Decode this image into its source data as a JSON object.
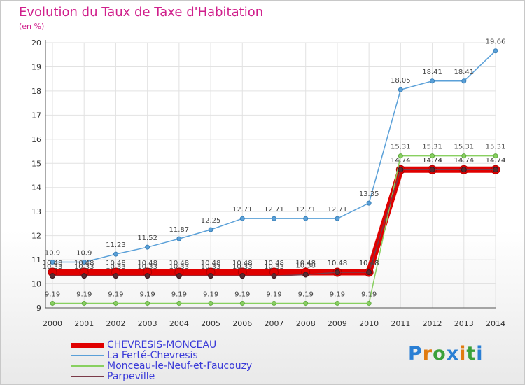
{
  "title": "Evolution du Taux de Taxe d'Habitation",
  "subtitle": "(en %)",
  "logo_text": "Proxiti",
  "logo_colors": [
    "#2a7fd4",
    "#e07b10",
    "#3aa03a",
    "#2a7fd4",
    "#e07b10",
    "#3aa03a",
    "#2a7fd4"
  ],
  "chart_data": {
    "type": "line",
    "x": [
      "2000",
      "2001",
      "2002",
      "2003",
      "2004",
      "2005",
      "2006",
      "2007",
      "2008",
      "2009",
      "2010",
      "2011",
      "2012",
      "2013",
      "2014"
    ],
    "ylim": [
      9,
      20
    ],
    "yticks": [
      "9",
      "10",
      "11",
      "12",
      "13",
      "14",
      "15",
      "16",
      "17",
      "18",
      "19",
      "20"
    ],
    "grid": true,
    "legend_position": "bottom-left",
    "series": [
      {
        "name": "CHEVRESIS-MONCEAU",
        "color": "#e00000",
        "values": [
          10.48,
          10.48,
          10.48,
          10.48,
          10.48,
          10.48,
          10.48,
          10.48,
          10.48,
          10.48,
          10.48,
          14.74,
          14.74,
          14.74,
          14.74
        ],
        "labels": [
          "10.48",
          "10.48",
          "10.48",
          "10.48",
          "10.48",
          "10.48",
          "10.48",
          "10.48",
          "10.48",
          "10.48",
          "10.48",
          "14.74",
          "14.74",
          "14.74",
          "14.74"
        ]
      },
      {
        "name": "La Ferté-Chevresis",
        "color": "#5aa0d8",
        "values": [
          10.9,
          10.9,
          11.23,
          11.52,
          11.87,
          12.25,
          12.71,
          12.71,
          12.71,
          12.71,
          13.35,
          18.05,
          18.41,
          18.41,
          19.66
        ],
        "labels": [
          "10.9",
          "10.9",
          "11.23",
          "11.52",
          "11.87",
          "12.25",
          "12.71",
          "12.71",
          "12.71",
          "12.71",
          "13.35",
          "18.05",
          "18.41",
          "18.41",
          "19.66"
        ]
      },
      {
        "name": "Monceau-le-Neuf-et-Faucouzy",
        "color": "#88d060",
        "values": [
          9.19,
          9.19,
          9.19,
          9.19,
          9.19,
          9.19,
          9.19,
          9.19,
          9.19,
          9.19,
          9.19,
          15.31,
          15.31,
          15.31,
          15.31
        ],
        "labels": [
          "9.19",
          "9.19",
          "9.19",
          "9.19",
          "9.19",
          "9.19",
          "9.19",
          "9.19",
          "9.19",
          "9.19",
          "9.19",
          "15.31",
          "15.31",
          "15.31",
          "15.31"
        ]
      },
      {
        "name": "Parpeville",
        "color": "#7a3a48",
        "values": [
          10.33,
          10.33,
          10.33,
          10.33,
          10.33,
          10.33,
          10.33,
          10.33,
          10.38,
          10.48,
          10.48,
          14.74,
          14.74,
          14.74,
          14.74
        ],
        "labels": [
          "10.33",
          "10.33",
          "10.33",
          "10.33",
          "10.33",
          "10.33",
          "10.33",
          "10.33",
          "10.38",
          "10.48",
          "10.48",
          "14.74",
          "14.74",
          "14.74",
          "14.74"
        ]
      }
    ]
  }
}
